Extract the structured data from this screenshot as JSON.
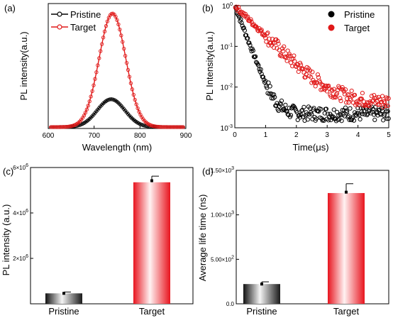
{
  "colors": {
    "pristine": "#000000",
    "target": "#e01818",
    "bar_pristine_dark": "#1a1a1a",
    "bar_target_dark": "#e8141e"
  },
  "chart_data": [
    {
      "panel_label": "(a)",
      "type": "line",
      "xlabel": "Wavelength (nm)",
      "ylabel": "PL intensity(a.u.)",
      "xlim": [
        600,
        900
      ],
      "xticks": [
        "600",
        "700",
        "800",
        "900"
      ],
      "legend": {
        "placement": "top-left",
        "entries": [
          "Pristine",
          "Target"
        ]
      },
      "series": [
        {
          "name": "Pristine",
          "peak_x": 737,
          "peak_y": 0.245,
          "width": 30,
          "baseline": 0.0
        },
        {
          "name": "Target",
          "peak_x": 740,
          "peak_y": 1.0,
          "width": 29,
          "baseline": 0.0
        }
      ]
    },
    {
      "panel_label": "(b)",
      "type": "scatter",
      "xlabel": "Time(μs)",
      "ylabel": "PL Intensity(a.u.)",
      "yscale": "log",
      "xlim": [
        0,
        5
      ],
      "ylim": [
        0.001,
        1
      ],
      "xticks": [
        "0",
        "1",
        "2",
        "3",
        "4",
        "5"
      ],
      "yticks": [
        {
          "base": "10",
          "exp": "0"
        },
        {
          "base": "10",
          "exp": "-1"
        },
        {
          "base": "10",
          "exp": "-2"
        },
        {
          "base": "10",
          "exp": "-3"
        }
      ],
      "legend": {
        "placement": "top-right",
        "entries": [
          "Pristine",
          "Target"
        ]
      },
      "series": [
        {
          "name": "Pristine",
          "tau": 0.22,
          "floor": 0.0022
        },
        {
          "name": "Target",
          "tau": 0.58,
          "floor": 0.0042
        }
      ]
    },
    {
      "panel_label": "(c)",
      "type": "bar",
      "ylabel": "PL intensity (a.u.)",
      "categories": [
        "Pristine",
        "Target"
      ],
      "values": [
        460000,
        5350000
      ],
      "errors": [
        60000,
        270000
      ],
      "points": [
        460000,
        5420000
      ],
      "ylim": [
        0,
        6000000
      ],
      "yticks": [
        {
          "value": 2000000,
          "mant": "2×10",
          "exp": "6"
        },
        {
          "value": 4000000,
          "mant": "4×10",
          "exp": "6"
        },
        {
          "value": 6000000,
          "mant": "6×10",
          "exp": "6"
        }
      ]
    },
    {
      "panel_label": "(d)",
      "type": "bar",
      "ylabel": "Average life time (ns)",
      "categories": [
        "Pristine",
        "Target"
      ],
      "values": [
        222,
        1245
      ],
      "errors": [
        25,
        105
      ],
      "points": [
        222,
        1255
      ],
      "ylim": [
        0,
        1500
      ],
      "yticks": [
        {
          "value": 0,
          "mant": "0.0",
          "exp": ""
        },
        {
          "value": 500,
          "mant": "5.00×10",
          "exp": "2"
        },
        {
          "value": 1000,
          "mant": "1.00×10",
          "exp": "3"
        },
        {
          "value": 1500,
          "mant": "1.50×10",
          "exp": "3"
        }
      ]
    }
  ]
}
